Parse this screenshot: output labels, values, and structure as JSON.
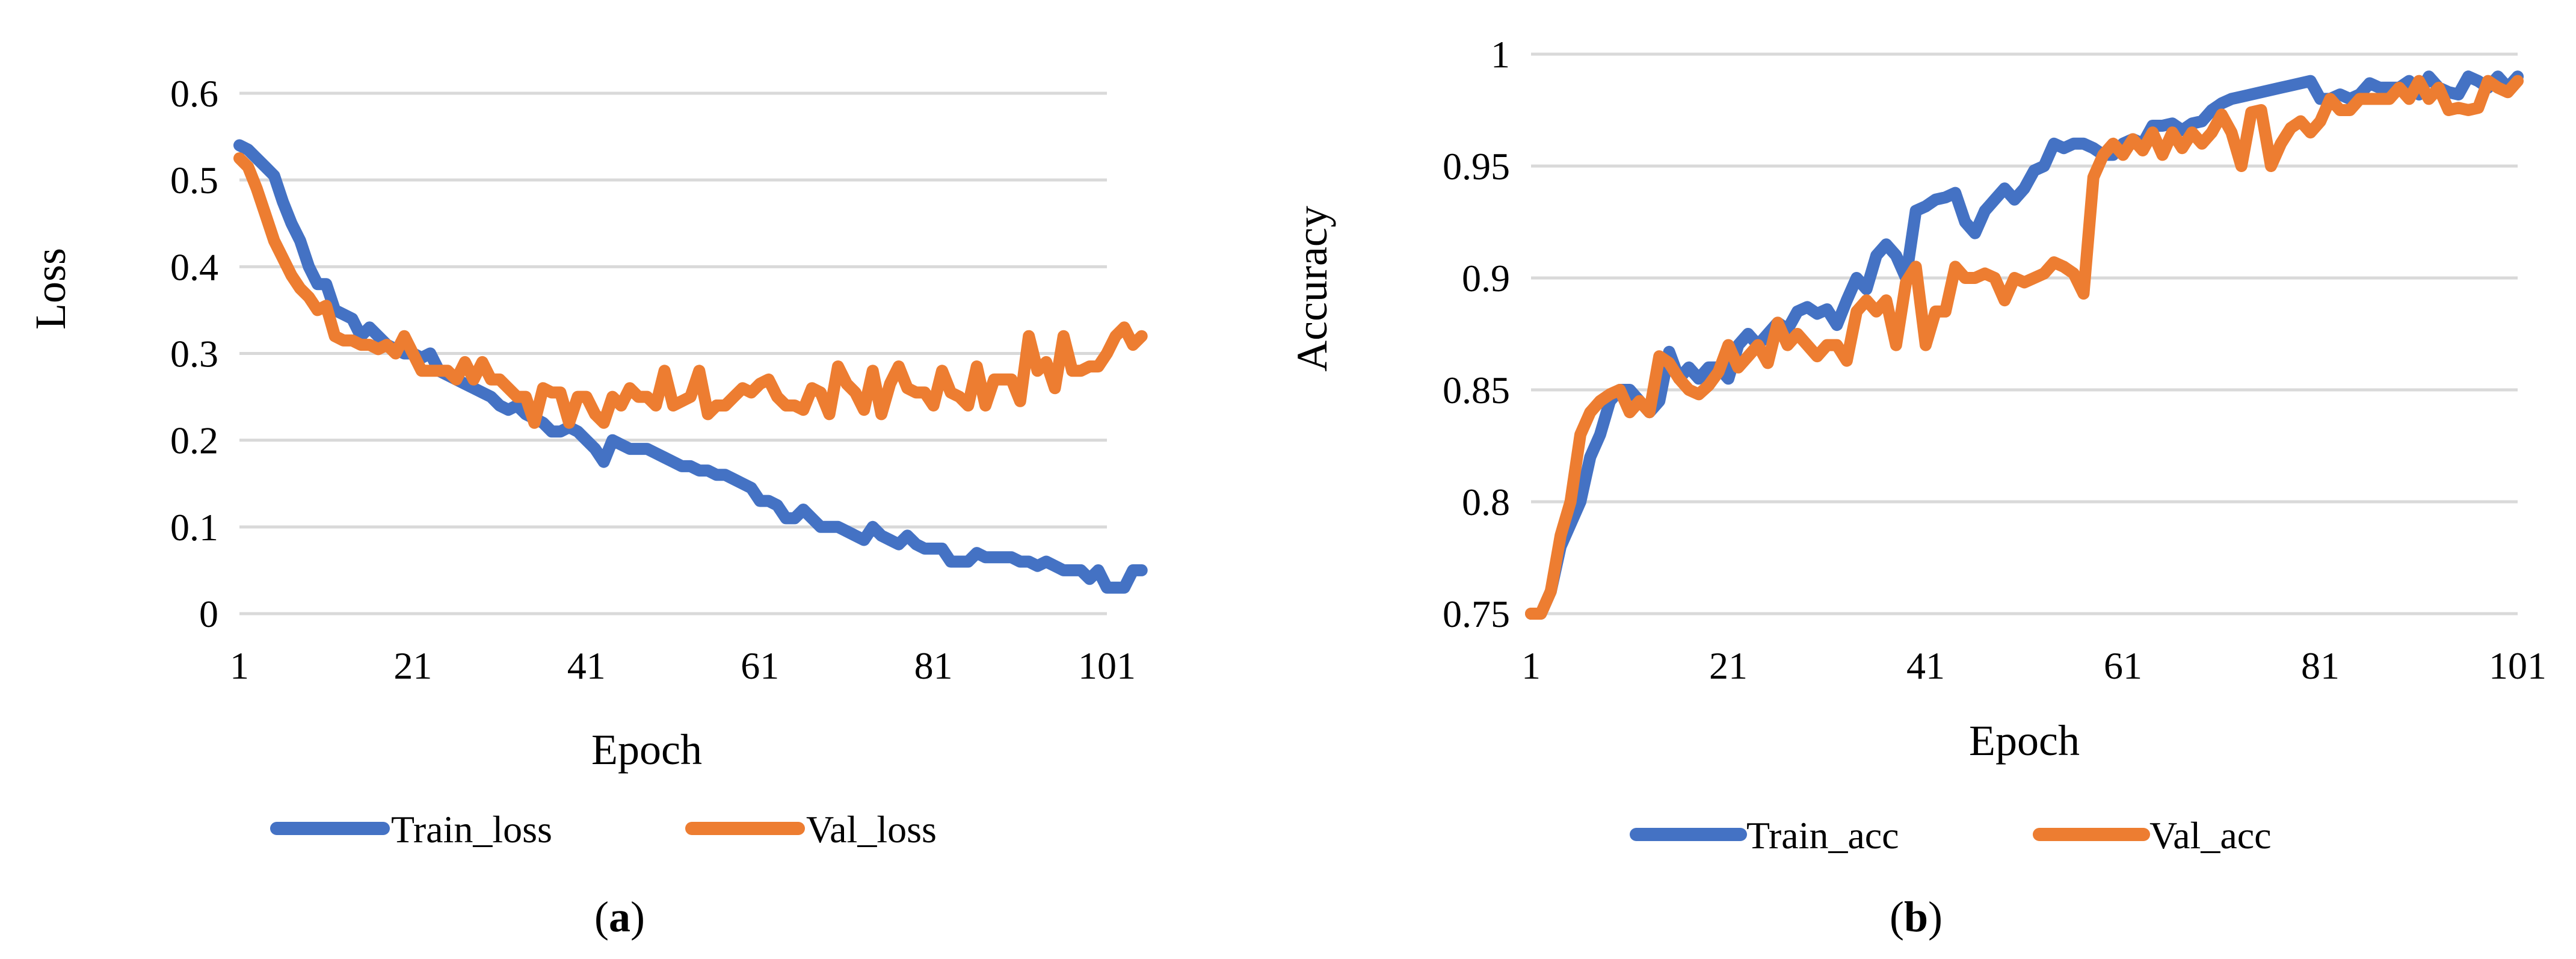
{
  "panels": [
    {
      "caption": {
        "open": "(",
        "letter": "a",
        "close": ")"
      },
      "chart_data": {
        "type": "line",
        "title": "",
        "xlabel": "Epoch",
        "ylabel": "Loss",
        "xlim": [
          1,
          101
        ],
        "ylim": [
          0,
          0.6
        ],
        "x_ticks": [
          "1",
          "21",
          "41",
          "61",
          "81",
          "101"
        ],
        "y_ticks": [
          "0",
          "0.1",
          "0.2",
          "0.3",
          "0.4",
          "0.5",
          "0.6"
        ],
        "grid": true,
        "legend_position": "bottom",
        "series": [
          {
            "name": "Train_loss",
            "color": "#4472c4",
            "values": [
              0.54,
              0.535,
              0.525,
              0.515,
              0.505,
              0.475,
              0.45,
              0.43,
              0.4,
              0.38,
              0.38,
              0.35,
              0.345,
              0.34,
              0.32,
              0.33,
              0.32,
              0.31,
              0.305,
              0.3,
              0.3,
              0.295,
              0.3,
              0.28,
              0.275,
              0.27,
              0.265,
              0.26,
              0.255,
              0.25,
              0.24,
              0.235,
              0.24,
              0.23,
              0.225,
              0.22,
              0.21,
              0.21,
              0.215,
              0.21,
              0.2,
              0.19,
              0.175,
              0.2,
              0.195,
              0.19,
              0.19,
              0.19,
              0.185,
              0.18,
              0.175,
              0.17,
              0.17,
              0.165,
              0.165,
              0.16,
              0.16,
              0.155,
              0.15,
              0.145,
              0.13,
              0.13,
              0.125,
              0.11,
              0.11,
              0.12,
              0.11,
              0.1,
              0.1,
              0.1,
              0.095,
              0.09,
              0.085,
              0.1,
              0.09,
              0.085,
              0.08,
              0.09,
              0.08,
              0.075,
              0.075,
              0.075,
              0.06,
              0.06,
              0.06,
              0.07,
              0.065,
              0.065,
              0.065,
              0.065,
              0.06,
              0.06,
              0.055,
              0.06,
              0.055,
              0.05,
              0.05,
              0.05,
              0.04,
              0.05,
              0.03,
              0.03,
              0.03,
              0.05,
              0.05
            ]
          },
          {
            "name": "Val_loss",
            "color": "#ed7d31",
            "values": [
              0.525,
              0.515,
              0.49,
              0.46,
              0.43,
              0.41,
              0.39,
              0.375,
              0.365,
              0.35,
              0.355,
              0.32,
              0.315,
              0.315,
              0.31,
              0.31,
              0.305,
              0.31,
              0.3,
              0.32,
              0.3,
              0.28,
              0.28,
              0.28,
              0.28,
              0.27,
              0.29,
              0.27,
              0.29,
              0.27,
              0.27,
              0.26,
              0.25,
              0.25,
              0.22,
              0.26,
              0.255,
              0.255,
              0.22,
              0.25,
              0.25,
              0.23,
              0.22,
              0.25,
              0.24,
              0.26,
              0.25,
              0.25,
              0.24,
              0.28,
              0.24,
              0.245,
              0.25,
              0.28,
              0.23,
              0.24,
              0.24,
              0.25,
              0.26,
              0.255,
              0.265,
              0.27,
              0.25,
              0.24,
              0.24,
              0.235,
              0.26,
              0.255,
              0.23,
              0.285,
              0.265,
              0.255,
              0.235,
              0.28,
              0.23,
              0.265,
              0.285,
              0.26,
              0.255,
              0.255,
              0.24,
              0.28,
              0.255,
              0.25,
              0.24,
              0.285,
              0.24,
              0.27,
              0.27,
              0.27,
              0.245,
              0.32,
              0.28,
              0.29,
              0.26,
              0.32,
              0.28,
              0.28,
              0.285,
              0.285,
              0.3,
              0.32,
              0.33,
              0.31,
              0.32
            ]
          }
        ]
      }
    },
    {
      "caption": {
        "open": "(",
        "letter": "b",
        "close": ")"
      },
      "chart_data": {
        "type": "line",
        "title": "",
        "xlabel": "Epoch",
        "ylabel": "Accuracy",
        "xlim": [
          1,
          101
        ],
        "ylim": [
          0.75,
          1
        ],
        "x_ticks": [
          "1",
          "21",
          "41",
          "61",
          "81",
          "101"
        ],
        "y_ticks": [
          "0.75",
          "0.8",
          "0.85",
          "0.9",
          "0.95",
          "1"
        ],
        "grid": true,
        "legend_position": "bottom",
        "series": [
          {
            "name": "Train_acc",
            "color": "#4472c4",
            "values": [
              0.75,
              0.75,
              0.76,
              0.78,
              0.79,
              0.8,
              0.82,
              0.83,
              0.845,
              0.85,
              0.85,
              0.845,
              0.84,
              0.845,
              0.867,
              0.855,
              0.86,
              0.855,
              0.86,
              0.86,
              0.855,
              0.87,
              0.875,
              0.87,
              0.875,
              0.88,
              0.877,
              0.885,
              0.887,
              0.884,
              0.886,
              0.879,
              0.89,
              0.9,
              0.895,
              0.91,
              0.915,
              0.91,
              0.9,
              0.93,
              0.932,
              0.935,
              0.936,
              0.938,
              0.925,
              0.92,
              0.93,
              0.935,
              0.94,
              0.935,
              0.94,
              0.948,
              0.95,
              0.96,
              0.958,
              0.96,
              0.96,
              0.958,
              0.955,
              0.955,
              0.96,
              0.962,
              0.96,
              0.968,
              0.968,
              0.969,
              0.966,
              0.969,
              0.97,
              0.975,
              0.978,
              0.98,
              0.981,
              0.982,
              0.983,
              0.984,
              0.985,
              0.986,
              0.987,
              0.988,
              0.98,
              0.98,
              0.982,
              0.98,
              0.982,
              0.987,
              0.985,
              0.985,
              0.985,
              0.988,
              0.982,
              0.99,
              0.985,
              0.983,
              0.982,
              0.99,
              0.988,
              0.985,
              0.99,
              0.985,
              0.99
            ]
          },
          {
            "name": "Val_acc",
            "color": "#ed7d31",
            "values": [
              0.75,
              0.75,
              0.76,
              0.785,
              0.8,
              0.83,
              0.84,
              0.845,
              0.848,
              0.85,
              0.84,
              0.845,
              0.84,
              0.865,
              0.862,
              0.855,
              0.85,
              0.848,
              0.852,
              0.858,
              0.87,
              0.86,
              0.865,
              0.87,
              0.862,
              0.88,
              0.87,
              0.875,
              0.87,
              0.865,
              0.87,
              0.87,
              0.863,
              0.885,
              0.89,
              0.885,
              0.89,
              0.87,
              0.898,
              0.905,
              0.87,
              0.885,
              0.885,
              0.905,
              0.9,
              0.9,
              0.902,
              0.9,
              0.89,
              0.9,
              0.898,
              0.9,
              0.902,
              0.907,
              0.905,
              0.902,
              0.893,
              0.945,
              0.955,
              0.96,
              0.955,
              0.962,
              0.957,
              0.965,
              0.955,
              0.965,
              0.958,
              0.965,
              0.96,
              0.965,
              0.973,
              0.965,
              0.95,
              0.974,
              0.975,
              0.95,
              0.96,
              0.967,
              0.97,
              0.965,
              0.97,
              0.98,
              0.975,
              0.975,
              0.98,
              0.98,
              0.98,
              0.98,
              0.985,
              0.98,
              0.988,
              0.98,
              0.985,
              0.975,
              0.976,
              0.975,
              0.976,
              0.988,
              0.985,
              0.983,
              0.988
            ]
          }
        ]
      }
    }
  ]
}
